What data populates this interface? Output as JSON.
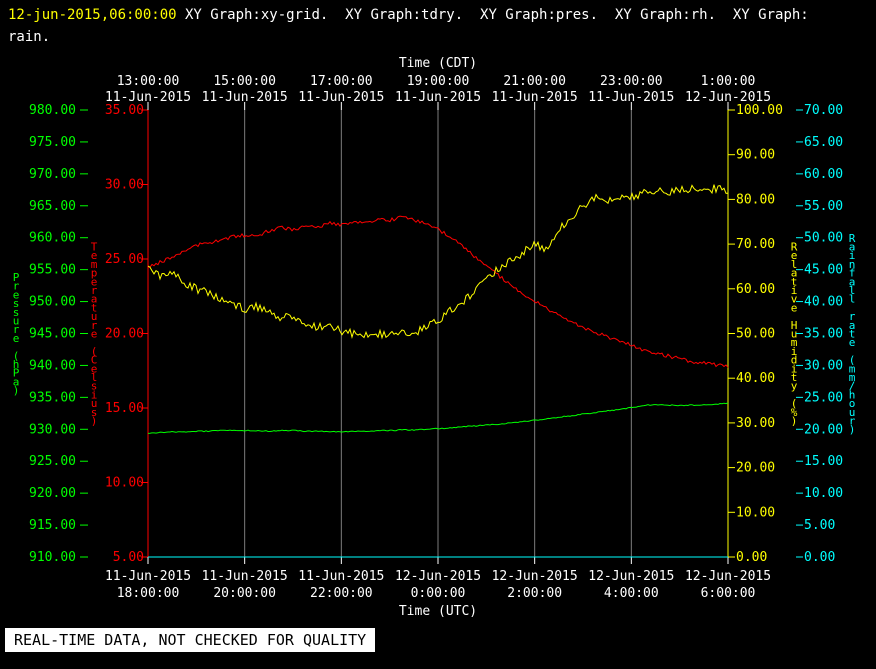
{
  "header": {
    "timestamp": "12-jun-2015,06:00:00",
    "title": " XY Graph:xy-grid.  XY Graph:tdry.  XY Graph:pres.  XY Graph:rh.  XY Graph:",
    "title_wrap": "rain."
  },
  "footer": {
    "disclaimer": "REAL-TIME DATA, NOT CHECKED FOR QUALITY"
  },
  "chart_data": {
    "type": "line",
    "background": "#000000",
    "frame_color": "#ffffff",
    "grid": {
      "color": "#7d7d7d",
      "vertical_hours": [
        2,
        4,
        6,
        8,
        10
      ]
    },
    "x_range_hours": [
      0,
      12
    ],
    "top_axis": {
      "title": "Time (CDT)",
      "ticks": [
        {
          "hour": 0,
          "time": "13:00:00",
          "date": "11-Jun-2015"
        },
        {
          "hour": 2,
          "time": "15:00:00",
          "date": "11-Jun-2015"
        },
        {
          "hour": 4,
          "time": "17:00:00",
          "date": "11-Jun-2015"
        },
        {
          "hour": 6,
          "time": "19:00:00",
          "date": "11-Jun-2015"
        },
        {
          "hour": 8,
          "time": "21:00:00",
          "date": "11-Jun-2015"
        },
        {
          "hour": 10,
          "time": "23:00:00",
          "date": "11-Jun-2015"
        },
        {
          "hour": 12,
          "time": "1:00:00",
          "date": "12-Jun-2015"
        }
      ]
    },
    "bottom_axis": {
      "title": "Time (UTC)",
      "ticks": [
        {
          "hour": 0,
          "date": "11-Jun-2015",
          "time": "18:00:00"
        },
        {
          "hour": 2,
          "date": "11-Jun-2015",
          "time": "20:00:00"
        },
        {
          "hour": 4,
          "date": "11-Jun-2015",
          "time": "22:00:00"
        },
        {
          "hour": 6,
          "date": "12-Jun-2015",
          "time": "0:00:00"
        },
        {
          "hour": 8,
          "date": "12-Jun-2015",
          "time": "2:00:00"
        },
        {
          "hour": 10,
          "date": "12-Jun-2015",
          "time": "4:00:00"
        },
        {
          "hour": 12,
          "date": "12-Jun-2015",
          "time": "6:00:00"
        }
      ]
    },
    "y_axes": [
      {
        "id": "pres",
        "label": "Pressure (hPa)",
        "color": "#00ff00",
        "min": 910,
        "max": 980,
        "step": 5,
        "side": "left",
        "slot": 1
      },
      {
        "id": "tdry",
        "label": "Temperature (Celsius)",
        "color": "#ff0000",
        "min": 5,
        "max": 35,
        "step": 5,
        "side": "left",
        "slot": 0,
        "axis_line": true
      },
      {
        "id": "rh",
        "label": "Relative Humidity (%)",
        "color": "#ffff00",
        "min": 0,
        "max": 100,
        "step": 10,
        "side": "right",
        "slot": 0,
        "axis_line": true
      },
      {
        "id": "rain",
        "label": "Rainfall rate (mm/hour)",
        "color": "#00ffff",
        "min": 0,
        "max": 70,
        "step": 5,
        "side": "right",
        "slot": 1
      }
    ],
    "x_hours": [
      0,
      0.25,
      0.5,
      0.75,
      1,
      1.25,
      1.5,
      1.75,
      2,
      2.25,
      2.5,
      2.75,
      3,
      3.25,
      3.5,
      3.75,
      4,
      4.25,
      4.5,
      4.75,
      5,
      5.25,
      5.5,
      5.75,
      6,
      6.25,
      6.5,
      6.75,
      7,
      7.25,
      7.5,
      7.75,
      8,
      8.25,
      8.5,
      8.75,
      9,
      9.25,
      9.5,
      9.75,
      10,
      10.25,
      10.5,
      10.75,
      11,
      11.25,
      11.5,
      11.75,
      12
    ],
    "series": [
      {
        "id": "rain",
        "axis": "rain",
        "color": "#00ffff",
        "jitter": 0,
        "values": [
          0,
          0,
          0,
          0,
          0,
          0,
          0,
          0,
          0,
          0,
          0,
          0,
          0,
          0,
          0,
          0,
          0,
          0,
          0,
          0,
          0,
          0,
          0,
          0,
          0,
          0,
          0,
          0,
          0,
          0,
          0,
          0,
          0,
          0,
          0,
          0,
          0,
          0,
          0,
          0,
          0,
          0,
          0,
          0,
          0,
          0,
          0,
          0,
          0
        ]
      },
      {
        "id": "pres",
        "axis": "pres",
        "color": "#00ff00",
        "jitter": 0.08,
        "values": [
          929.4,
          929.5,
          929.6,
          929.6,
          929.7,
          929.7,
          929.8,
          929.8,
          929.8,
          929.8,
          929.7,
          929.8,
          929.8,
          929.7,
          929.7,
          929.6,
          929.6,
          929.7,
          929.7,
          929.8,
          929.8,
          929.9,
          929.9,
          930.0,
          930.1,
          930.2,
          930.4,
          930.5,
          930.7,
          930.8,
          931.0,
          931.2,
          931.4,
          931.6,
          931.9,
          932.1,
          932.4,
          932.6,
          932.9,
          933.1,
          933.4,
          933.7,
          933.9,
          933.8,
          933.7,
          933.8,
          933.8,
          933.9,
          934.1
        ]
      },
      {
        "id": "tdry",
        "axis": "tdry",
        "color": "#ff0000",
        "jitter": 0.12,
        "values": [
          24.4,
          24.8,
          25.1,
          25.6,
          25.9,
          26.1,
          26.2,
          26.5,
          26.6,
          26.5,
          26.9,
          27.1,
          27.0,
          27.2,
          27.1,
          27.4,
          27.3,
          27.5,
          27.4,
          27.7,
          27.6,
          27.8,
          27.6,
          27.4,
          27.0,
          26.5,
          25.9,
          25.2,
          24.5,
          23.9,
          23.3,
          22.7,
          22.2,
          21.7,
          21.2,
          20.8,
          20.4,
          20.1,
          19.8,
          19.5,
          19.2,
          18.9,
          18.7,
          18.5,
          18.3,
          18.1,
          18.0,
          17.9,
          17.8
        ]
      },
      {
        "id": "rh",
        "axis": "rh",
        "color": "#ffff00",
        "jitter": 0.9,
        "values": [
          64.5,
          63.0,
          64.0,
          61.5,
          60.0,
          59.0,
          57.5,
          56.5,
          55.5,
          56.0,
          54.5,
          53.5,
          54.0,
          52.5,
          51.5,
          52.0,
          50.5,
          50.0,
          49.5,
          50.0,
          49.5,
          50.5,
          50.0,
          51.5,
          53.0,
          55.0,
          57.0,
          59.5,
          62.0,
          64.5,
          66.5,
          68.0,
          70.0,
          68.5,
          73.0,
          76.0,
          78.5,
          80.5,
          79.5,
          80.5,
          80.5,
          81.5,
          82.0,
          81.5,
          82.0,
          82.5,
          82.0,
          82.5,
          82.0
        ]
      }
    ]
  }
}
